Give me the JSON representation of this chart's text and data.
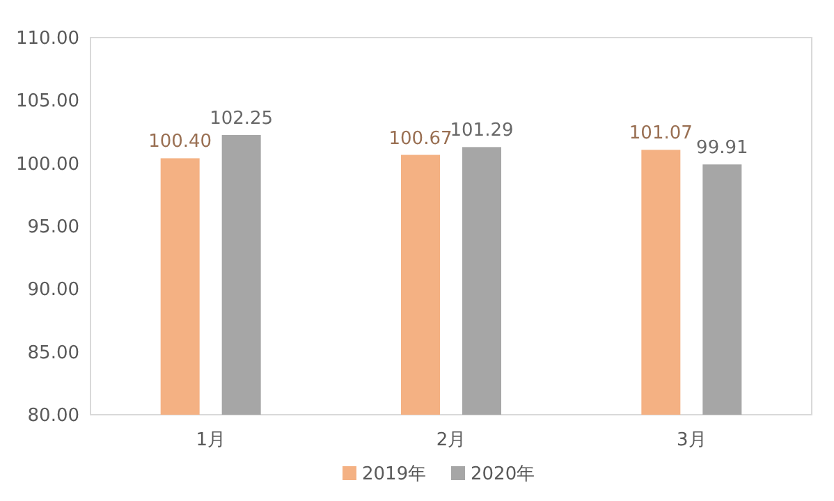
{
  "chart_data": {
    "type": "bar",
    "categories": [
      "1月",
      "2月",
      "3月"
    ],
    "series": [
      {
        "name": "2019年",
        "color": "#f4b183",
        "values": [
          100.4,
          100.67,
          101.07
        ],
        "value_labels": [
          "100.40",
          "100.67",
          "101.07"
        ]
      },
      {
        "name": "2020年",
        "color": "#a6a6a6",
        "values": [
          102.25,
          101.29,
          99.91
        ],
        "value_labels": [
          "102.25",
          "101.29",
          "99.91"
        ]
      }
    ],
    "ylim": [
      80,
      110
    ],
    "yticks": [
      {
        "value": 80,
        "label": "80.00"
      },
      {
        "value": 85,
        "label": "85.00"
      },
      {
        "value": 90,
        "label": "90.00"
      },
      {
        "value": 95,
        "label": "95.00"
      },
      {
        "value": 100,
        "label": "100.00"
      },
      {
        "value": 105,
        "label": "105.00"
      },
      {
        "value": 110,
        "label": "110.00"
      }
    ],
    "grid": false,
    "legend": "bottom"
  }
}
